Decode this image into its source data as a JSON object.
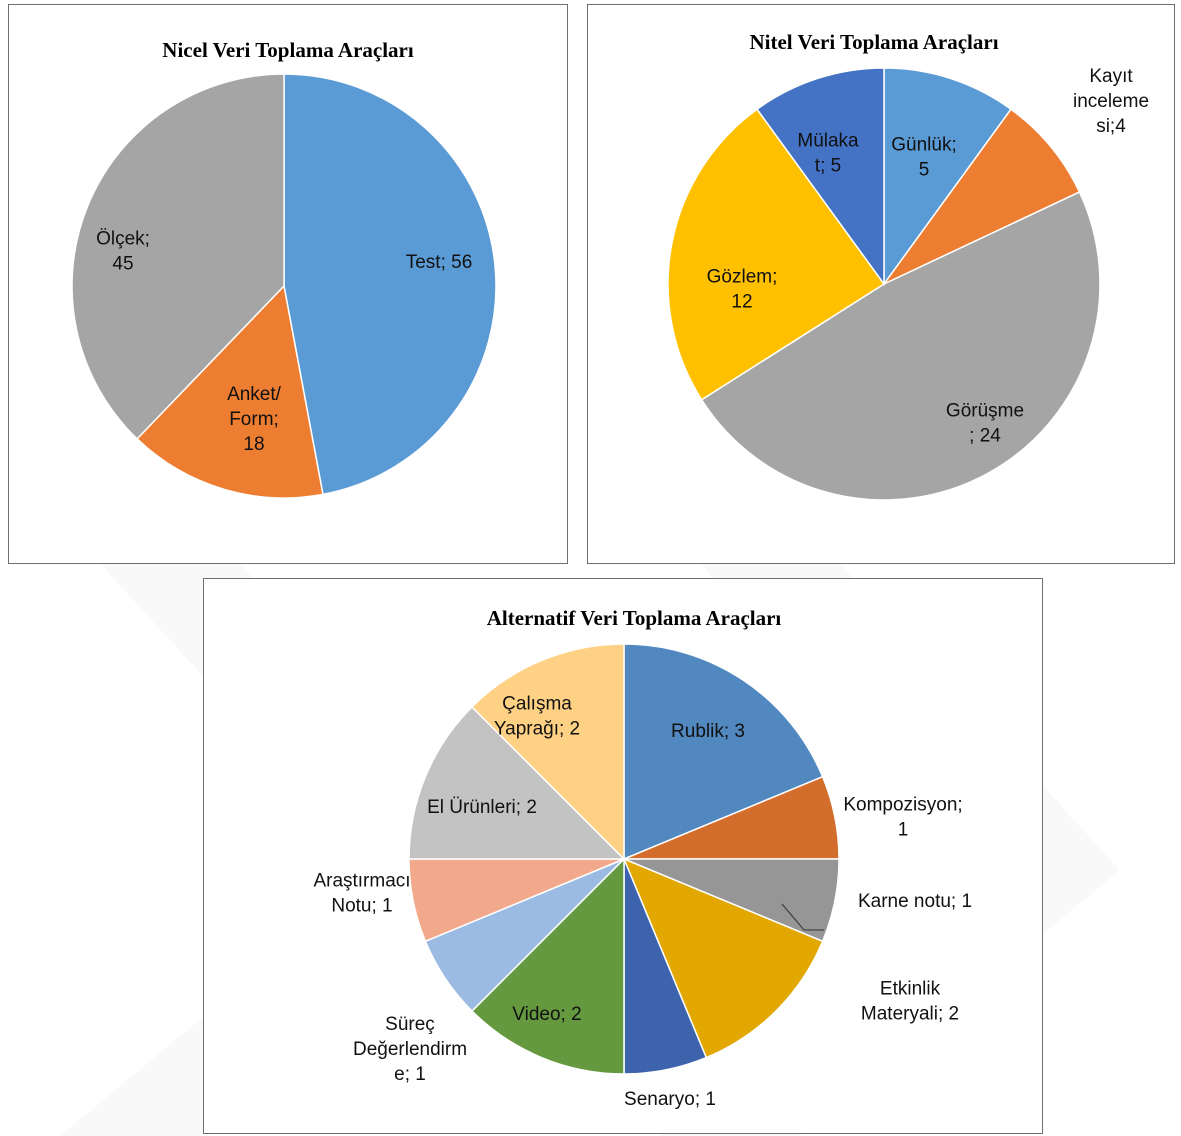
{
  "chart_data": [
    {
      "type": "pie",
      "title": "Nicel Veri Toplama Araçları",
      "slices": [
        {
          "name": "Test",
          "value": 56,
          "color": "#5b9bd5",
          "label_lines": [
            "Test; 56"
          ]
        },
        {
          "name": "Anket/ Form",
          "value": 18,
          "color": "#ed7d31",
          "label_lines": [
            "Anket/",
            "Form;",
            "18"
          ]
        },
        {
          "name": "Ölçek",
          "value": 45,
          "color": "#a5a5a5",
          "label_lines": [
            "Ölçek;",
            "45"
          ]
        }
      ]
    },
    {
      "type": "pie",
      "title": "Nitel Veri Toplama Araçları",
      "slices": [
        {
          "name": "Günlük",
          "value": 5,
          "color": "#5b9bd5",
          "label_lines": [
            "Günlük;",
            "5"
          ]
        },
        {
          "name": "Kayıt inceleme si",
          "value": 4,
          "color": "#ed7d31",
          "label_lines": [
            "Kayıt",
            "inceleme",
            "si;4"
          ]
        },
        {
          "name": "Görüşme",
          "value": 24,
          "color": "#a5a5a5",
          "label_lines": [
            "Görüşme",
            "; 24"
          ]
        },
        {
          "name": "Gözlem",
          "value": 12,
          "color": "#ffc000",
          "label_lines": [
            "Gözlem;",
            "12"
          ]
        },
        {
          "name": "Mülaka t",
          "value": 5,
          "color": "#4472c4",
          "label_lines": [
            "Mülaka",
            "t; 5"
          ]
        }
      ]
    },
    {
      "type": "pie",
      "title": "Alternatif Veri Toplama Araçları",
      "slices": [
        {
          "name": "Rublik",
          "value": 3,
          "color": "#5088bf",
          "label_lines": [
            "Rublik; 3"
          ]
        },
        {
          "name": "Kompozisyon",
          "value": 1,
          "color": "#d36d2b",
          "label_lines": [
            "Kompozisyon;",
            "1"
          ]
        },
        {
          "name": "Karne notu",
          "value": 1,
          "color": "#969696",
          "label_lines": [
            "Karne notu; 1"
          ]
        },
        {
          "name": "Etkinlik Materyali",
          "value": 2,
          "color": "#e2a700",
          "label_lines": [
            "Etkinlik",
            "Materyali; 2"
          ]
        },
        {
          "name": "Senaryo",
          "value": 1,
          "color": "#3d63ad",
          "label_lines": [
            "Senaryo; 1"
          ]
        },
        {
          "name": "Video",
          "value": 2,
          "color": "#64993f",
          "label_lines": [
            "Video; 2"
          ]
        },
        {
          "name": "Süreç Değerlendirm e",
          "value": 1,
          "color": "#9bbbe2",
          "label_lines": [
            "Süreç",
            "Değerlendirm",
            "e; 1"
          ]
        },
        {
          "name": "Araştırmacı Notu",
          "value": 1,
          "color": "#f2a98b",
          "label_lines": [
            "Araştırmacı",
            "Notu; 1"
          ]
        },
        {
          "name": "El Ürünleri",
          "value": 2,
          "color": "#c3c3c3",
          "label_lines": [
            "El Ürünleri; 2"
          ]
        },
        {
          "name": "Çalışma Yaprağı",
          "value": 2,
          "color": "#ffd184",
          "label_lines": [
            "Çalışma",
            "Yaprağı; 2"
          ]
        }
      ]
    }
  ]
}
